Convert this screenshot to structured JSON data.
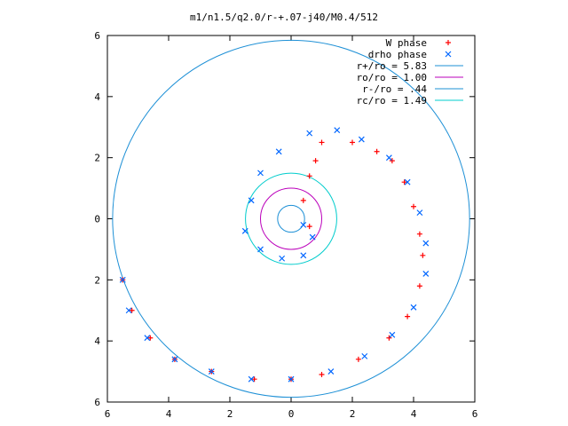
{
  "chart_data": {
    "type": "scatter",
    "title": "m1/n1.5/q2.0/r-+.07-j40/M0.4/512",
    "xlim": [
      -6,
      6
    ],
    "ylim": [
      -6,
      6
    ],
    "x_ticks": [
      {
        "value": -6,
        "label": "6"
      },
      {
        "value": -4,
        "label": "4"
      },
      {
        "value": -2,
        "label": "2"
      },
      {
        "value": 0,
        "label": "0"
      },
      {
        "value": 2,
        "label": "2"
      },
      {
        "value": 4,
        "label": "4"
      },
      {
        "value": 6,
        "label": "6"
      }
    ],
    "y_ticks": [
      {
        "value": -6,
        "label": "6"
      },
      {
        "value": -4,
        "label": "4"
      },
      {
        "value": -2,
        "label": "2"
      },
      {
        "value": 0,
        "label": "0"
      },
      {
        "value": 2,
        "label": "2"
      },
      {
        "value": 4,
        "label": "4"
      },
      {
        "value": 6,
        "label": "6"
      }
    ],
    "grid": false,
    "legend_position": "top-right",
    "series": [
      {
        "name": "W phase",
        "kind": "points",
        "marker": "plus",
        "color": "#ff0000",
        "points": [
          [
            1.0,
            2.5
          ],
          [
            2.0,
            2.5
          ],
          [
            2.8,
            2.2
          ],
          [
            3.3,
            1.9
          ],
          [
            3.7,
            1.2
          ],
          [
            4.0,
            0.4
          ],
          [
            4.2,
            -0.5
          ],
          [
            4.3,
            -1.2
          ],
          [
            4.2,
            -2.2
          ],
          [
            3.8,
            -3.2
          ],
          [
            3.2,
            -3.9
          ],
          [
            2.2,
            -4.6
          ],
          [
            1.0,
            -5.1
          ],
          [
            0.0,
            -5.25
          ],
          [
            -1.2,
            -5.25
          ],
          [
            -2.6,
            -5.0
          ],
          [
            -3.8,
            -4.6
          ],
          [
            -4.6,
            -3.9
          ],
          [
            -5.2,
            -3.0
          ],
          [
            -5.5,
            -2.0
          ],
          [
            0.6,
            -0.25
          ],
          [
            0.4,
            0.6
          ],
          [
            0.6,
            1.4
          ],
          [
            0.8,
            1.9
          ]
        ]
      },
      {
        "name": "drho phase",
        "kind": "points",
        "marker": "cross",
        "color": "#0066ff",
        "points": [
          [
            -1.3,
            0.6
          ],
          [
            -1.0,
            1.5
          ],
          [
            -0.4,
            2.2
          ],
          [
            0.6,
            2.8
          ],
          [
            1.5,
            2.9
          ],
          [
            2.3,
            2.6
          ],
          [
            3.2,
            2.0
          ],
          [
            3.8,
            1.2
          ],
          [
            4.2,
            0.2
          ],
          [
            4.4,
            -0.8
          ],
          [
            4.4,
            -1.8
          ],
          [
            4.0,
            -2.9
          ],
          [
            3.3,
            -3.8
          ],
          [
            2.4,
            -4.5
          ],
          [
            1.3,
            -5.0
          ],
          [
            0.0,
            -5.25
          ],
          [
            -1.3,
            -5.25
          ],
          [
            -2.6,
            -5.0
          ],
          [
            -3.8,
            -4.6
          ],
          [
            -4.7,
            -3.9
          ],
          [
            -5.3,
            -3.0
          ],
          [
            -5.5,
            -2.0
          ],
          [
            -1.5,
            -0.4
          ],
          [
            -1.0,
            -1.0
          ],
          [
            -0.3,
            -1.3
          ],
          [
            0.4,
            -1.2
          ],
          [
            0.7,
            -0.6
          ],
          [
            0.4,
            -0.2
          ]
        ]
      },
      {
        "name": "r+/ro = 5.83",
        "kind": "circle",
        "radius": 5.83,
        "color": "#1e90d6"
      },
      {
        "name": "ro/ro = 1.00",
        "kind": "circle",
        "radius": 1.0,
        "color": "#bb00bb"
      },
      {
        "name": "r-/ro = .44",
        "kind": "circle",
        "radius": 0.44,
        "color": "#1e90d6"
      },
      {
        "name": "rc/ro = 1.49",
        "kind": "circle",
        "radius": 1.49,
        "color": "#00cccc"
      }
    ]
  }
}
